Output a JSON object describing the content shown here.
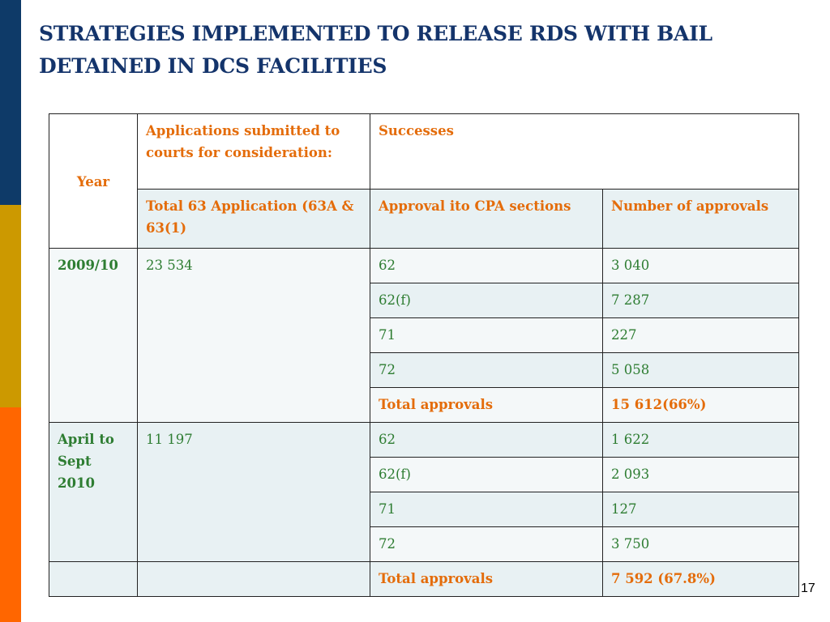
{
  "title": "STRATEGIES IMPLEMENTED TO RELEASE RDS WITH BAIL DETAINED IN DCS FACILITIES",
  "table": {
    "header": {
      "year": "Year",
      "applications": "Applications submitted to courts  for consideration:",
      "successes": "Successes",
      "total_app": "Total 63 Application (63A & 63(1)",
      "approval_sections": "Approval ito CPA sections",
      "num_approvals": "Number of approvals"
    },
    "period1": {
      "year": "2009/10",
      "applications": "23 534",
      "rows": [
        {
          "section": "62",
          "approvals": "3 040"
        },
        {
          "section": "62(f)",
          "approvals": "7 287"
        },
        {
          "section": "71",
          "approvals": "227"
        },
        {
          "section": "72",
          "approvals": "5 058"
        }
      ],
      "total_label": "Total approvals",
      "total_value": "15 612(66%)"
    },
    "period2": {
      "year": "April to Sept 2010",
      "applications": "11 197",
      "rows": [
        {
          "section": "62",
          "approvals": "1 622"
        },
        {
          "section": "62(f)",
          "approvals": "2 093"
        },
        {
          "section": "71",
          "approvals": "127"
        },
        {
          "section": "72",
          "approvals": "3 750"
        }
      ],
      "total_label": "Total approvals",
      "total_value": "7 592 (67.8%)"
    }
  },
  "page_number": "17",
  "colors": {
    "title": "#14346b",
    "header_text": "#e46c0a",
    "value_text": "#2e7d32",
    "bar_navy": "#0e3a68",
    "bar_gold": "#cc9900",
    "bar_orange": "#ff6600",
    "row_shade": "#e8f1f3"
  }
}
